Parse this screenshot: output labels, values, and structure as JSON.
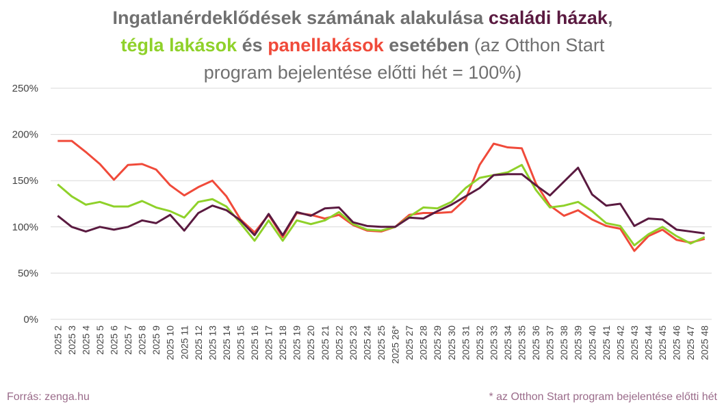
{
  "chart_data": {
    "type": "line",
    "title_parts": [
      {
        "text": "Ingatlanérdeklődések számának alakulása ",
        "color": "#707070",
        "bold": true
      },
      {
        "text": "családi házak",
        "color": "#5a1a40",
        "bold": true
      },
      {
        "text": ", ",
        "color": "#707070",
        "bold": true
      },
      {
        "text": "tégla lakások",
        "color": "#8fd12a",
        "bold": true
      },
      {
        "text": " és ",
        "color": "#707070",
        "bold": true
      },
      {
        "text": "panellakások",
        "color": "#f04a3a",
        "bold": true
      },
      {
        "text": " esetében",
        "color": "#707070",
        "bold": true
      },
      {
        "text": " (az Otthon Start program bejelentése előtti hét = 100%)",
        "color": "#707070",
        "bold": false
      }
    ],
    "categories": [
      "2025 2",
      "2025 3",
      "2025 4",
      "2025 5",
      "2025 6",
      "2025 7",
      "2025 8",
      "2025 9",
      "2025 10",
      "2025 11",
      "2025 12",
      "2025 13",
      "2025 14",
      "2025 15",
      "2025 16",
      "2025 17",
      "2025 18",
      "2025 19",
      "2025 20",
      "2025 21",
      "2025 22",
      "2025 23",
      "2025 24",
      "2025 25",
      "2025 26*",
      "2025 27",
      "2025 28",
      "2025 29",
      "2025 30",
      "2025 31",
      "2025 32",
      "2025 33",
      "2025 34",
      "2025 35",
      "2025 36",
      "2025 37",
      "2025 38",
      "2025 39",
      "2025 40",
      "2025 41",
      "2025 42",
      "2025 43",
      "2025 44",
      "2025 45",
      "2025 46",
      "2025 47",
      "2025 48"
    ],
    "series": [
      {
        "color": "#f04a3a",
        "values": [
          193,
          193,
          181,
          168,
          151,
          167,
          168,
          162,
          145,
          134,
          143,
          150,
          133,
          108,
          94,
          113,
          89,
          115,
          113,
          109,
          113,
          102,
          96,
          95,
          100,
          113,
          115,
          115,
          116,
          130,
          167,
          190,
          186,
          185,
          147,
          123,
          112,
          118,
          108,
          101,
          98,
          74,
          90,
          97,
          86,
          83,
          87
        ]
      },
      {
        "color": "#8fd12a",
        "values": [
          146,
          133,
          124,
          127,
          122,
          122,
          128,
          121,
          117,
          110,
          127,
          130,
          122,
          104,
          85,
          107,
          85,
          107,
          103,
          107,
          116,
          103,
          97,
          96,
          100,
          111,
          121,
          120,
          127,
          142,
          153,
          156,
          159,
          167,
          140,
          121,
          123,
          127,
          117,
          104,
          101,
          80,
          92,
          100,
          90,
          82,
          89
        ]
      },
      {
        "color": "#5a1a40",
        "values": [
          112,
          100,
          95,
          100,
          97,
          100,
          107,
          104,
          113,
          96,
          115,
          123,
          118,
          107,
          91,
          114,
          91,
          116,
          112,
          120,
          121,
          105,
          101,
          100,
          100,
          110,
          109,
          117,
          124,
          133,
          142,
          156,
          157,
          157,
          145,
          134,
          149,
          164,
          135,
          123,
          125,
          101,
          109,
          108,
          97,
          95,
          93
        ]
      }
    ],
    "ylim": [
      0,
      250
    ],
    "yticks": [
      {
        "value": 0,
        "label": "0%"
      },
      {
        "value": 50,
        "label": "50%"
      },
      {
        "value": 100,
        "label": "100%"
      },
      {
        "value": 150,
        "label": "150%"
      },
      {
        "value": 200,
        "label": "200%"
      },
      {
        "value": 250,
        "label": "250%"
      }
    ],
    "grid": true,
    "source": "Forrás: zenga.hu",
    "footnote": "* az Otthon Start program bejelentése előtti hét"
  }
}
